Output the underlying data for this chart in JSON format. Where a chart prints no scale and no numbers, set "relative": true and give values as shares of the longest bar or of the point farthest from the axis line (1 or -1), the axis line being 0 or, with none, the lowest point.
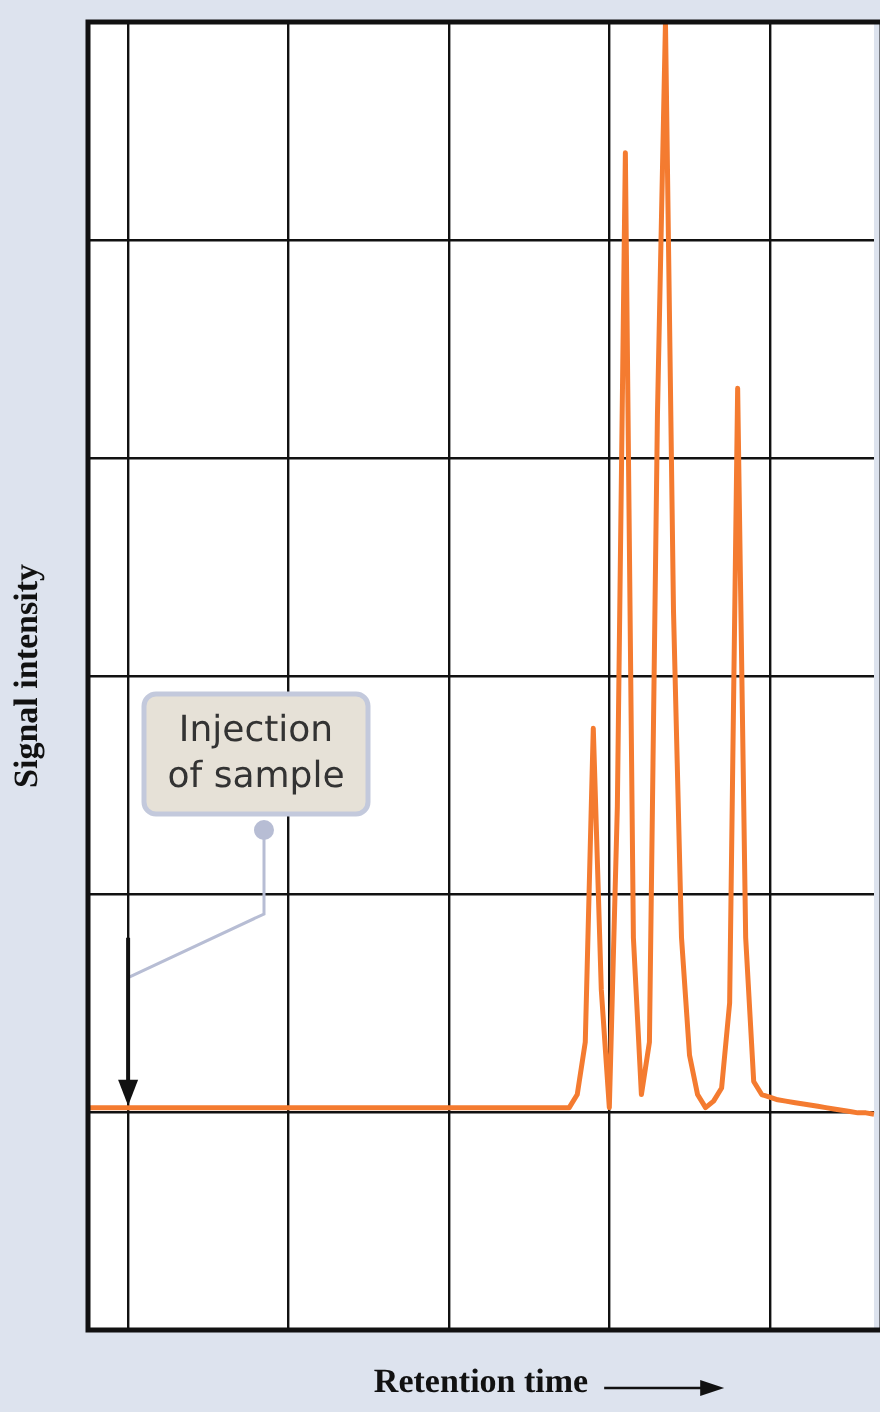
{
  "chart_data": {
    "type": "line",
    "relative": true,
    "xlabel": "Retention time",
    "ylabel": "Signal intensity",
    "categories": [
      null,
      null,
      null,
      null,
      null,
      null,
      null,
      null,
      null,
      null,
      null,
      null,
      null,
      null,
      null,
      null,
      null,
      null,
      null,
      null,
      null,
      null,
      null,
      null,
      null,
      null,
      null,
      null,
      null,
      null,
      null,
      null,
      null,
      null,
      null,
      null,
      null,
      null,
      null,
      null,
      null,
      null,
      null,
      null,
      null,
      null,
      null,
      null,
      null,
      null,
      null,
      null,
      null,
      null,
      null,
      null,
      null,
      null,
      null,
      null,
      null,
      null,
      null,
      null,
      null,
      null,
      null,
      null,
      null,
      null,
      null,
      null,
      null,
      null,
      null,
      null,
      null,
      null,
      null,
      null,
      null,
      null,
      null,
      null,
      null,
      null,
      null,
      null,
      null,
      null,
      null,
      null,
      null,
      null,
      null,
      null,
      null,
      null,
      null
    ],
    "values": [
      0.17,
      0.17,
      0.17,
      0.17,
      0.17,
      0.17,
      0.17,
      0.17,
      0.17,
      0.17,
      0.17,
      0.17,
      0.17,
      0.17,
      0.17,
      0.17,
      0.17,
      0.17,
      0.17,
      0.17,
      0.17,
      0.17,
      0.17,
      0.17,
      0.17,
      0.17,
      0.17,
      0.17,
      0.17,
      0.17,
      0.17,
      0.17,
      0.17,
      0.17,
      0.17,
      0.17,
      0.17,
      0.17,
      0.17,
      0.17,
      0.17,
      0.17,
      0.17,
      0.17,
      0.17,
      0.17,
      0.17,
      0.17,
      0.17,
      0.17,
      0.17,
      0.17,
      0.17,
      0.17,
      0.17,
      0.17,
      0.17,
      0.17,
      0.17,
      0.17,
      0.17,
      0.18,
      0.22,
      0.46,
      0.26,
      0.17,
      0.4,
      0.9,
      0.3,
      0.18,
      0.22,
      0.7,
      1.0,
      0.55,
      0.3,
      0.21,
      0.18,
      0.17,
      0.175,
      0.185,
      0.25,
      0.72,
      0.3,
      0.19,
      0.18,
      0.178,
      0.176,
      0.175,
      0.174,
      0.173,
      0.172,
      0.171,
      0.17,
      0.169,
      0.168,
      0.167,
      0.166,
      0.166,
      0.165
    ],
    "color": "#f47b30",
    "grid": true,
    "marker": "none",
    "line_style": "solid",
    "annotations": [
      "Injection of sample"
    ]
  }
}
